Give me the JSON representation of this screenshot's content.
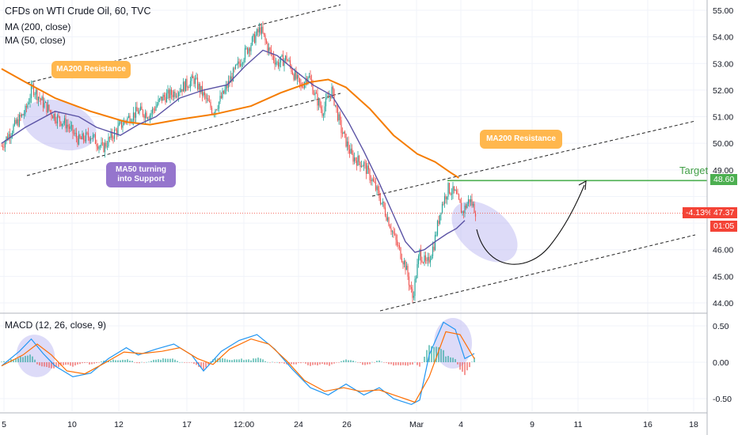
{
  "header": {
    "title": "CFDs on WTI Crude Oil, 60, TVC",
    "ma200_label": "MA (200, close)",
    "ma50_label": "MA (50, close)",
    "macd_label": "MACD (12, 26, close, 9)"
  },
  "annotations": {
    "ma200_resistance_1": "MA200 Resistance",
    "ma200_resistance_2": "MA200 Resistance",
    "ma50_support_line1": "MA50 turning",
    "ma50_support_line2": "into Support",
    "target": "Target"
  },
  "price_tags": {
    "target": "48.60",
    "change": "-4.13%",
    "last": "47.37",
    "countdown": "01:05"
  },
  "colors": {
    "up_candle": "#26a69a",
    "down_candle": "#ef5350",
    "ma200": "#f57c00",
    "ma50": "#5b53a5",
    "macd_line": "#2196f3",
    "signal_line": "#ff6d00",
    "target_line": "#4caf50",
    "highlight": "#b3b0f0",
    "orange_note": "#ffb74d",
    "purple_note": "#9575cd",
    "last_price": "#f44336"
  },
  "chart_data": [
    {
      "type": "candlestick",
      "name": "price",
      "x_ticks": [
        "5",
        "10",
        "12",
        "17",
        "12:00",
        "24",
        "26",
        "Mar",
        "4",
        "9",
        "11",
        "16",
        "18"
      ],
      "y_ticks": [
        "44.00",
        "45.00",
        "46.00",
        "47.00",
        "48.00",
        "49.00",
        "50.00",
        "51.00",
        "52.00",
        "53.00",
        "54.00",
        "55.00"
      ],
      "ylim": [
        43.6,
        55.3
      ],
      "bar_count": 320,
      "anchors": [
        [
          0,
          49.9
        ],
        [
          10,
          50.6
        ],
        [
          20,
          51.2
        ],
        [
          26,
          52.1
        ],
        [
          35,
          51.5
        ],
        [
          45,
          51.0
        ],
        [
          55,
          50.7
        ],
        [
          65,
          50.1
        ],
        [
          75,
          50.3
        ],
        [
          85,
          49.8
        ],
        [
          95,
          50.4
        ],
        [
          105,
          50.9
        ],
        [
          115,
          51.2
        ],
        [
          125,
          51.1
        ],
        [
          135,
          51.7
        ],
        [
          145,
          51.9
        ],
        [
          155,
          52.2
        ],
        [
          162,
          52.4
        ],
        [
          170,
          51.8
        ],
        [
          178,
          51.2
        ],
        [
          185,
          51.7
        ],
        [
          195,
          52.6
        ],
        [
          205,
          53.4
        ],
        [
          212,
          53.9
        ],
        [
          218,
          54.3
        ],
        [
          225,
          53.5
        ],
        [
          232,
          53.0
        ],
        [
          240,
          53.2
        ],
        [
          246,
          52.6
        ],
        [
          252,
          52.1
        ],
        [
          258,
          52.6
        ],
        [
          264,
          51.8
        ],
        [
          270,
          51.2
        ],
        [
          278,
          52.0
        ],
        [
          286,
          50.5
        ],
        [
          295,
          49.5
        ],
        [
          305,
          49.2
        ],
        [
          312,
          48.6
        ],
        [
          318,
          48.0
        ],
        [
          325,
          47.2
        ],
        [
          332,
          46.3
        ],
        [
          340,
          45.4
        ],
        [
          346,
          44.2
        ],
        [
          352,
          45.9
        ],
        [
          358,
          45.4
        ],
        [
          364,
          46.2
        ],
        [
          370,
          47.6
        ],
        [
          376,
          48.3
        ],
        [
          382,
          48.1
        ],
        [
          388,
          47.4
        ],
        [
          394,
          47.9
        ],
        [
          400,
          47.37
        ]
      ],
      "ma200": [
        [
          0,
          52.8
        ],
        [
          20,
          52.3
        ],
        [
          45,
          51.7
        ],
        [
          75,
          51.2
        ],
        [
          105,
          50.8
        ],
        [
          125,
          50.7
        ],
        [
          150,
          50.9
        ],
        [
          180,
          51.1
        ],
        [
          210,
          51.4
        ],
        [
          235,
          51.9
        ],
        [
          260,
          52.3
        ],
        [
          275,
          52.4
        ],
        [
          290,
          52.1
        ],
        [
          310,
          51.3
        ],
        [
          330,
          50.3
        ],
        [
          350,
          49.6
        ],
        [
          365,
          49.3
        ],
        [
          378,
          48.9
        ],
        [
          385,
          48.7
        ]
      ],
      "ma50": [
        [
          0,
          50.0
        ],
        [
          20,
          50.6
        ],
        [
          45,
          51.2
        ],
        [
          65,
          51.0
        ],
        [
          80,
          50.6
        ],
        [
          100,
          50.3
        ],
        [
          115,
          50.7
        ],
        [
          130,
          51.0
        ],
        [
          150,
          51.7
        ],
        [
          170,
          52.0
        ],
        [
          190,
          52.2
        ],
        [
          205,
          52.9
        ],
        [
          220,
          53.5
        ],
        [
          232,
          53.3
        ],
        [
          248,
          52.7
        ],
        [
          262,
          52.2
        ],
        [
          278,
          51.8
        ],
        [
          292,
          50.8
        ],
        [
          305,
          49.7
        ],
        [
          318,
          48.5
        ],
        [
          330,
          47.3
        ],
        [
          340,
          46.3
        ],
        [
          348,
          45.9
        ],
        [
          356,
          46.0
        ],
        [
          365,
          46.3
        ],
        [
          375,
          46.6
        ],
        [
          383,
          46.8
        ],
        [
          390,
          47.1
        ]
      ]
    },
    {
      "type": "line",
      "name": "macd",
      "y_ticks": [
        "-0.50",
        "0.00",
        "0.50"
      ],
      "ylim": [
        -0.62,
        0.62
      ],
      "macd": [
        [
          0,
          -0.05
        ],
        [
          15,
          0.15
        ],
        [
          25,
          0.32
        ],
        [
          35,
          0.12
        ],
        [
          45,
          -0.05
        ],
        [
          60,
          -0.2
        ],
        [
          75,
          -0.15
        ],
        [
          90,
          0.05
        ],
        [
          105,
          0.2
        ],
        [
          115,
          0.1
        ],
        [
          130,
          0.18
        ],
        [
          145,
          0.25
        ],
        [
          160,
          0.1
        ],
        [
          170,
          -0.12
        ],
        [
          185,
          0.15
        ],
        [
          200,
          0.3
        ],
        [
          215,
          0.38
        ],
        [
          230,
          0.18
        ],
        [
          245,
          -0.1
        ],
        [
          260,
          -0.35
        ],
        [
          275,
          -0.45
        ],
        [
          290,
          -0.3
        ],
        [
          305,
          -0.45
        ],
        [
          318,
          -0.35
        ],
        [
          330,
          -0.5
        ],
        [
          345,
          -0.58
        ],
        [
          352,
          -0.52
        ],
        [
          360,
          0.1
        ],
        [
          372,
          0.55
        ],
        [
          382,
          0.45
        ],
        [
          390,
          0.05
        ],
        [
          398,
          0.12
        ]
      ],
      "signal": [
        [
          0,
          -0.05
        ],
        [
          18,
          0.1
        ],
        [
          30,
          0.25
        ],
        [
          42,
          0.1
        ],
        [
          55,
          -0.12
        ],
        [
          70,
          -0.16
        ],
        [
          88,
          0.0
        ],
        [
          103,
          0.14
        ],
        [
          118,
          0.12
        ],
        [
          135,
          0.15
        ],
        [
          150,
          0.2
        ],
        [
          165,
          0.05
        ],
        [
          178,
          -0.03
        ],
        [
          192,
          0.18
        ],
        [
          210,
          0.32
        ],
        [
          225,
          0.25
        ],
        [
          240,
          0.02
        ],
        [
          255,
          -0.25
        ],
        [
          272,
          -0.4
        ],
        [
          288,
          -0.35
        ],
        [
          302,
          -0.4
        ],
        [
          318,
          -0.38
        ],
        [
          332,
          -0.46
        ],
        [
          348,
          -0.55
        ],
        [
          360,
          -0.2
        ],
        [
          374,
          0.42
        ],
        [
          386,
          0.38
        ],
        [
          398,
          0.05
        ]
      ]
    }
  ]
}
